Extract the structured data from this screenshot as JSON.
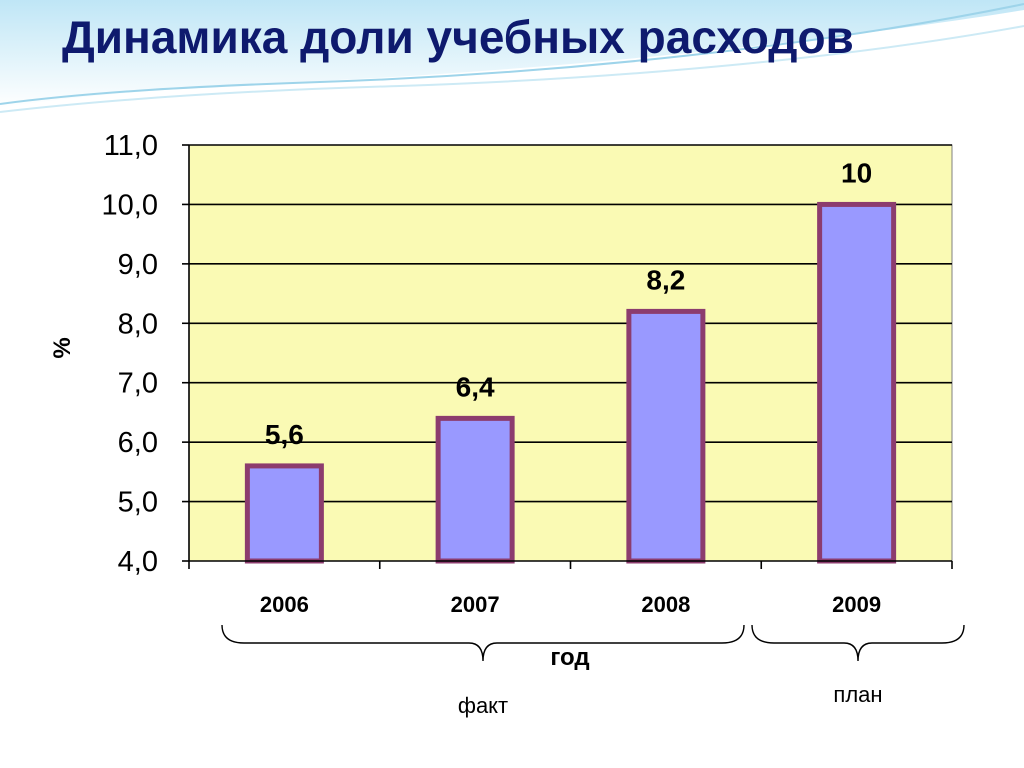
{
  "slide": {
    "title": "Динамика доли учебных расходов"
  },
  "colors": {
    "plot_background": "#fafab4",
    "bar_fill": "#9999ff",
    "bar_border": "#8c3c6e",
    "title": "#0e1a6e"
  },
  "chart_data": {
    "type": "bar",
    "title": "",
    "xlabel": "год",
    "ylabel": "%",
    "categories": [
      "2006",
      "2007",
      "2008",
      "2009"
    ],
    "values": [
      5.6,
      6.4,
      8.2,
      10
    ],
    "data_labels": [
      "5,6",
      "6,4",
      "8,2",
      "10"
    ],
    "ylim": [
      4.0,
      11.0
    ],
    "yticks": [
      4.0,
      5.0,
      6.0,
      7.0,
      8.0,
      9.0,
      10.0,
      11.0
    ],
    "ytick_labels": [
      "4,0",
      "5,0",
      "6,0",
      "7,0",
      "8,0",
      "9,0",
      "10,0",
      "11,0"
    ],
    "grid": true,
    "legend": "none",
    "groups": [
      {
        "label": "факт",
        "categories": [
          "2006",
          "2007",
          "2008"
        ]
      },
      {
        "label": "план",
        "categories": [
          "2009"
        ]
      }
    ]
  }
}
